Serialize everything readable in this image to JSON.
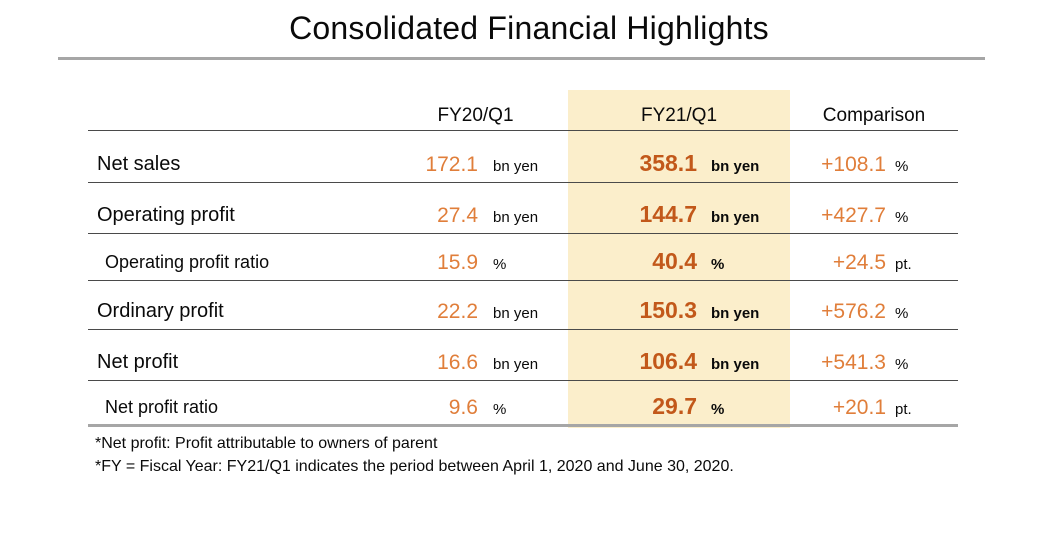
{
  "title": "Consolidated Financial Highlights",
  "colors": {
    "value_orange": "#e07e3a",
    "value_dark_orange": "#c2581a",
    "highlight_column_bg": "#fbeecb",
    "rule_gray": "#a6a6a6",
    "row_line": "#4a4a4a"
  },
  "table": {
    "columns": [
      {
        "label": "FY20/Q1",
        "highlighted": false
      },
      {
        "label": "FY21/Q1",
        "highlighted": true
      },
      {
        "label": "Comparison",
        "highlighted": false
      }
    ],
    "rows": [
      {
        "label": "Net sales",
        "fy20": "172.1",
        "fy20_unit": "bn yen",
        "fy21": "358.1",
        "fy21_unit": "bn yen",
        "comparison": "+108.1",
        "comparison_unit": "%"
      },
      {
        "label": "Operating profit",
        "fy20": "27.4",
        "fy20_unit": "bn yen",
        "fy21": "144.7",
        "fy21_unit": "bn yen",
        "comparison": "+427.7",
        "comparison_unit": "%"
      },
      {
        "label": "Operating profit ratio",
        "fy20": "15.9",
        "fy20_unit": "%",
        "fy21": "40.4",
        "fy21_unit": "%",
        "comparison": "+24.5",
        "comparison_unit": "pt."
      },
      {
        "label": "Ordinary profit",
        "fy20": "22.2",
        "fy20_unit": "bn yen",
        "fy21": "150.3",
        "fy21_unit": "bn yen",
        "comparison": "+576.2",
        "comparison_unit": "%"
      },
      {
        "label": "Net profit",
        "fy20": "16.6",
        "fy20_unit": "bn yen",
        "fy21": "106.4",
        "fy21_unit": "bn yen",
        "comparison": "+541.3",
        "comparison_unit": "%"
      },
      {
        "label": "Net profit ratio",
        "fy20": "9.6",
        "fy20_unit": "%",
        "fy21": "29.7",
        "fy21_unit": "%",
        "comparison": "+20.1",
        "comparison_unit": "pt."
      }
    ]
  },
  "footnotes": [
    "*Net profit: Profit attributable to owners of parent",
    "*FY = Fiscal Year: FY21/Q1 indicates the period between April 1, 2020 and June 30, 2020."
  ]
}
